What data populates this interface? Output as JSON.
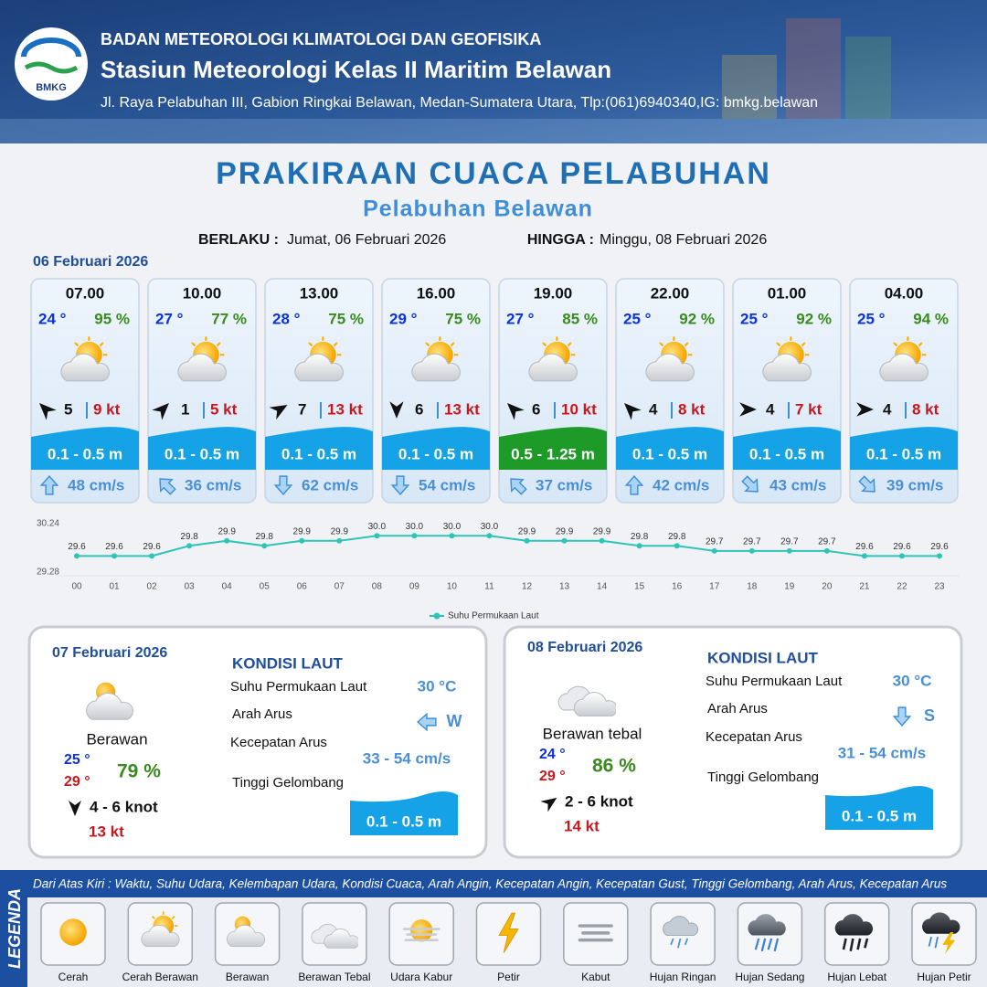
{
  "header": {
    "logo_text": "BMKG",
    "agency": "BADAN METEOROLOGI KLIMATOLOGI DAN GEOFISIKA",
    "station": "Stasiun Meteorologi Kelas II Maritim Belawan",
    "address": "Jl. Raya Pelabuhan III, Gabion Ringkai Belawan, Medan-Sumatera Utara, Tlp:(061)6940340,IG: bmkg.belawan"
  },
  "title": "PRAKIRAAN CUACA PELABUHAN",
  "subtitle": "Pelabuhan Belawan",
  "validity": {
    "from_label": "BERLAKU :",
    "from": "Jumat, 06 Februari 2026",
    "to_label": "HINGGA :",
    "to": "Minggu, 08 Februari 2026"
  },
  "forecast": {
    "date": "06 Februari 2026",
    "cards": [
      {
        "time": "07.00",
        "temp": "24 °",
        "humidity": "95 %",
        "wind": "5",
        "gust": "9 kt",
        "wave": "0.1 - 0.5 m",
        "current": "48 cm/s"
      },
      {
        "time": "10.00",
        "temp": "27 °",
        "humidity": "77 %",
        "wind": "1",
        "gust": "5 kt",
        "wave": "0.1 - 0.5 m",
        "current": "36 cm/s"
      },
      {
        "time": "13.00",
        "temp": "28 °",
        "humidity": "75 %",
        "wind": "7",
        "gust": "13 kt",
        "wave": "0.1 - 0.5 m",
        "current": "62 cm/s"
      },
      {
        "time": "16.00",
        "temp": "29 °",
        "humidity": "75 %",
        "wind": "6",
        "gust": "13 kt",
        "wave": "0.1 - 0.5 m",
        "current": "54 cm/s"
      },
      {
        "time": "19.00",
        "temp": "27 °",
        "humidity": "85 %",
        "wind": "6",
        "gust": "10 kt",
        "wave": "0.5 - 1.25 m",
        "current": "37 cm/s"
      },
      {
        "time": "22.00",
        "temp": "25 °",
        "humidity": "92 %",
        "wind": "4",
        "gust": "8 kt",
        "wave": "0.1 - 0.5 m",
        "current": "42 cm/s"
      },
      {
        "time": "01.00",
        "temp": "25 °",
        "humidity": "92 %",
        "wind": "4",
        "gust": "7 kt",
        "wave": "0.1 - 0.5 m",
        "current": "43 cm/s"
      },
      {
        "time": "04.00",
        "temp": "25 °",
        "humidity": "94 %",
        "wind": "4",
        "gust": "8 kt",
        "wave": "0.1 - 0.5 m",
        "current": "39 cm/s"
      }
    ]
  },
  "chart_data": {
    "type": "line",
    "categories": [
      "00",
      "01",
      "02",
      "03",
      "04",
      "05",
      "06",
      "07",
      "08",
      "09",
      "10",
      "11",
      "12",
      "13",
      "14",
      "15",
      "16",
      "17",
      "18",
      "19",
      "20",
      "21",
      "22",
      "23"
    ],
    "series": [
      {
        "name": "Suhu Permukaan Laut",
        "color": "#2ec4b6",
        "values": [
          29.6,
          29.6,
          29.6,
          29.8,
          29.9,
          29.8,
          29.9,
          29.9,
          30.0,
          30.0,
          30.0,
          30.0,
          29.9,
          29.9,
          29.9,
          29.8,
          29.8,
          29.7,
          29.7,
          29.7,
          29.7,
          29.6,
          29.6,
          29.6
        ],
        "value_labels": [
          "29.6",
          "29.6",
          "29.6",
          "29.8",
          "29.9",
          "29.8",
          "29.9",
          "29.9",
          "30.0",
          "30.0",
          "30.0",
          "30.0",
          "29.9",
          "29.9",
          "29.9",
          "29.8",
          "29.8",
          "29.7",
          "29.7",
          "29.7",
          "29.7",
          "29.6",
          "29.6",
          "29.6"
        ]
      }
    ],
    "ylim": [
      29.28,
      30.24
    ],
    "yticks": [
      29.28,
      30.24
    ],
    "legend": "bottom"
  },
  "days": [
    {
      "date": "07 Februari 2026",
      "weather": "Berawan",
      "temp_min": "25 °",
      "temp_max": "29 °",
      "humidity": "79 %",
      "wind": "4  - 6 knot",
      "gust": "13 kt",
      "sea_heading": "KONDISI LAUT",
      "sst_label": "Suhu Permukaan Laut",
      "sst": "30 °C",
      "current_dir_label": "Arah Arus",
      "current_dir": "W",
      "current_speed_label": "Kecepatan Arus",
      "current_speed": "33 - 54 cm/s",
      "wave_label": "Tinggi Gelombang",
      "wave": "0.1 - 0.5 m"
    },
    {
      "date": "08 Februari 2026",
      "weather": "Berawan tebal",
      "temp_min": "24 °",
      "temp_max": "29 °",
      "humidity": "86 %",
      "wind": "2  - 6 knot",
      "gust": "14 kt",
      "sea_heading": "KONDISI LAUT",
      "sst_label": "Suhu Permukaan Laut",
      "sst": "30 °C",
      "current_dir_label": "Arah Arus",
      "current_dir": "S",
      "current_speed_label": "Kecepatan Arus",
      "current_speed": "31  - 54 cm/s",
      "wave_label": "Tinggi Gelombang",
      "wave": "0.1 - 0.5 m"
    }
  ],
  "legend": {
    "title": "LEGENDA",
    "description": "Dari Atas Kiri : Waktu, Suhu Udara, Kelembapan Udara, Kondisi Cuaca, Arah Angin, Kecepatan Angin, Kecepatan Gust, Tinggi Gelombang, Arah Arus, Kecepatan Arus",
    "items": [
      "Cerah",
      "Cerah Berawan",
      "Berawan",
      "Berawan Tebal",
      "Udara Kabur",
      "Petir",
      "Kabut",
      "Hujan Ringan",
      "Hujan Sedang",
      "Hujan Lebat",
      "Hujan Petir"
    ]
  }
}
